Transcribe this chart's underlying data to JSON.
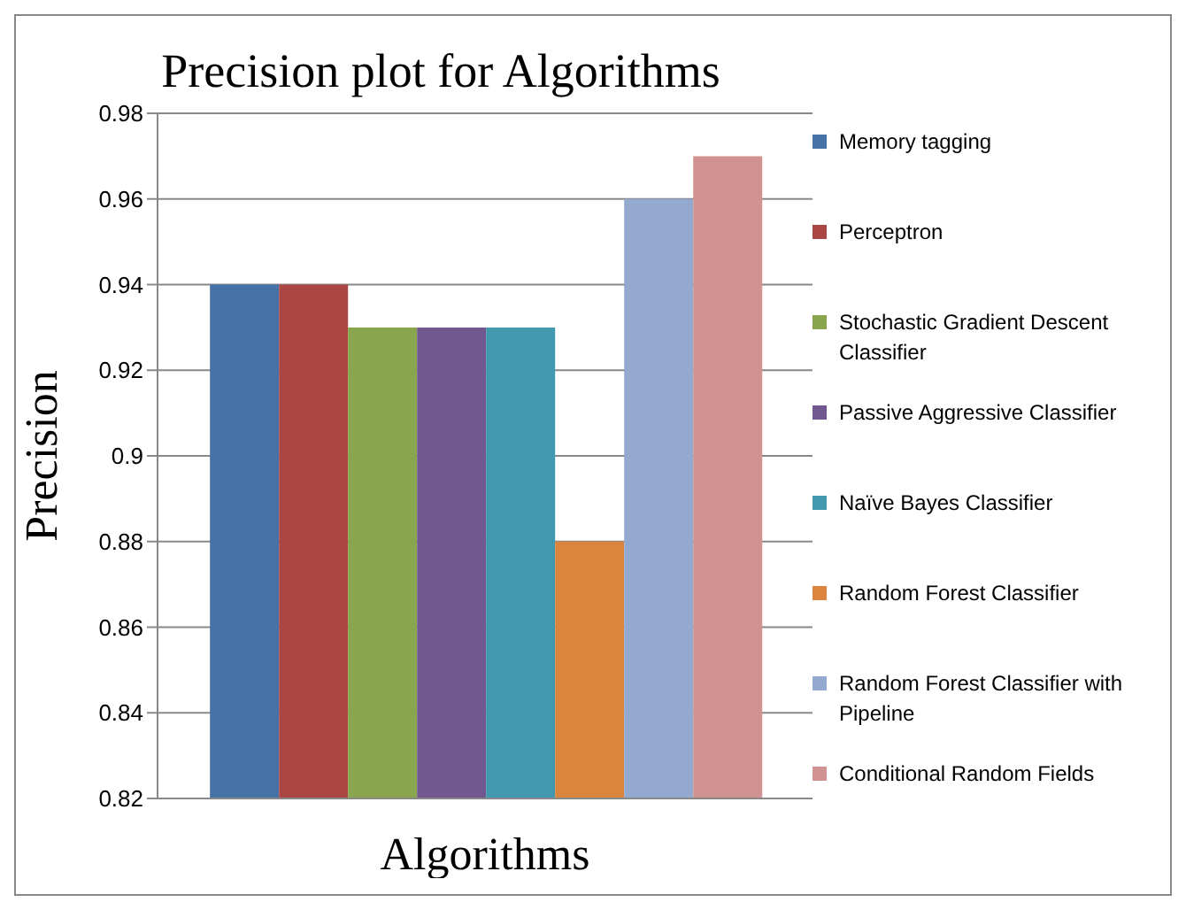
{
  "chart_data": {
    "type": "bar",
    "title": "Precision plot for Algorithms",
    "xlabel": "Algorithms",
    "ylabel": "Precision",
    "categories": [
      null
    ],
    "series": [
      {
        "name": "Memory tagging",
        "color": "#4572a7",
        "values": [
          0.94
        ]
      },
      {
        "name": "Perceptron",
        "color": "#aa4643",
        "values": [
          0.94
        ]
      },
      {
        "name": "Stochastic Gradient Descent Classifier",
        "color": "#89a54e",
        "values": [
          0.93
        ]
      },
      {
        "name": "Passive Aggressive Classifier",
        "color": "#71588f",
        "values": [
          0.93
        ]
      },
      {
        "name": "Naïve Bayes Classifier",
        "color": "#4198af",
        "values": [
          0.93
        ]
      },
      {
        "name": "Random Forest Classifier",
        "color": "#db843d",
        "values": [
          0.88
        ]
      },
      {
        "name": "Random Forest Classifier with Pipeline",
        "color": "#93a9cf",
        "values": [
          0.96
        ]
      },
      {
        "name": "Conditional Random Fields",
        "color": "#d19392",
        "values": [
          0.97
        ]
      }
    ],
    "ylim": [
      0.82,
      0.98
    ],
    "yticks": [
      0.82,
      0.84,
      0.86,
      0.88,
      0.9,
      0.92,
      0.94,
      0.96,
      0.98
    ],
    "grid": "y",
    "legend": "right"
  }
}
